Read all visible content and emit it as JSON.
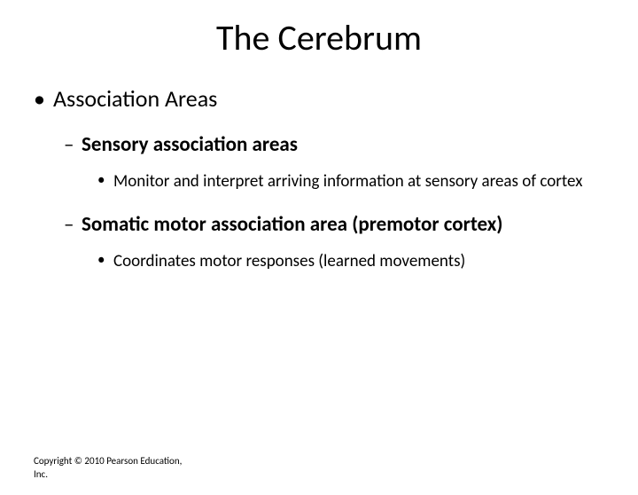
{
  "slide": {
    "title": "The Cerebrum",
    "background_color": "#ffffff",
    "text_color": "#000000",
    "title_fontsize": 40,
    "content": {
      "level1": {
        "text": "Association Areas",
        "fontsize": 26,
        "bullet": "•"
      },
      "items": [
        {
          "heading": "Sensory association areas",
          "heading_fontsize": 23,
          "heading_bold": true,
          "bullet": "–",
          "sub": {
            "text": "Monitor and interpret arriving information at sensory areas of cortex",
            "fontsize": 19,
            "bullet": "•"
          }
        },
        {
          "heading": "Somatic motor association area (premotor cortex)",
          "heading_fontsize": 23,
          "heading_bold": true,
          "bullet": "–",
          "sub": {
            "text": "Coordinates motor responses (learned movements)",
            "fontsize": 19,
            "bullet": "•"
          }
        }
      ]
    },
    "copyright": "Copyright © 2010 Pearson Education, Inc.",
    "copyright_fontsize": 11
  }
}
